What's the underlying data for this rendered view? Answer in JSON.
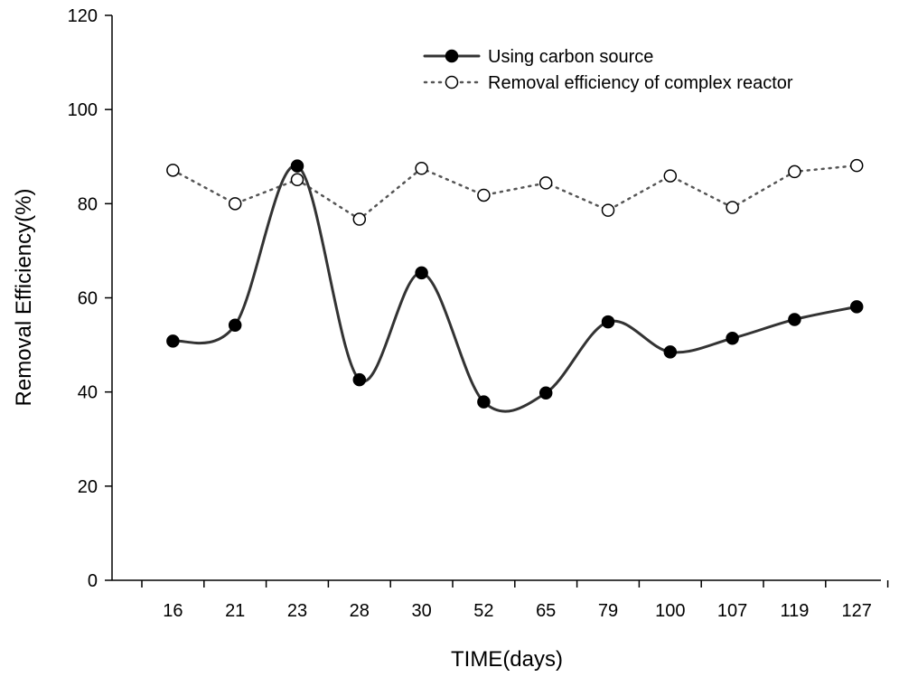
{
  "chart_data": {
    "type": "line",
    "title": "",
    "xlabel": "TIME(days)",
    "ylabel": "Removal Efficiency(%)",
    "categories": [
      "16",
      "21",
      "23",
      "28",
      "30",
      "52",
      "65",
      "79",
      "100",
      "107",
      "119",
      "127"
    ],
    "ylim": [
      0,
      120
    ],
    "yticks": [
      0,
      20,
      40,
      60,
      80,
      100,
      120
    ],
    "grid": false,
    "legend_position": "top-right",
    "series": [
      {
        "name": "Using carbon source",
        "values": [
          50.8,
          54.2,
          88.0,
          42.6,
          65.3,
          37.9,
          39.8,
          54.9,
          48.5,
          51.4,
          55.4,
          58.1
        ],
        "line_style": "solid",
        "curve": "smooth",
        "marker": "filled-circle",
        "color": "#333333"
      },
      {
        "name": "Removal efficiency of complex reactor",
        "values": [
          87.1,
          80.0,
          85.1,
          76.7,
          87.5,
          81.8,
          84.4,
          78.6,
          85.9,
          79.2,
          86.8,
          88.1
        ],
        "line_style": "dotted",
        "curve": "straight",
        "marker": "open-circle",
        "color": "#555555"
      }
    ]
  }
}
